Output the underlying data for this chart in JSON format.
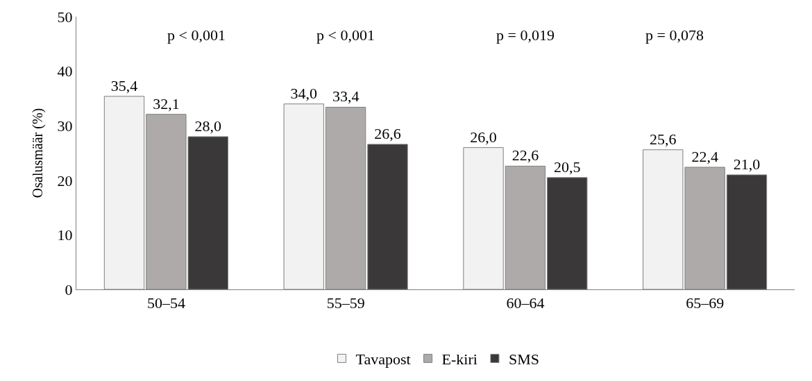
{
  "chart_data": {
    "type": "bar",
    "ylabel": "Osalusmäär (%)",
    "categories": [
      "50–54",
      "55–59",
      "60–64",
      "65–69"
    ],
    "series": [
      {
        "name": "Tavapost",
        "color": "#f2f2f2",
        "values": [
          35.4,
          34.0,
          26.0,
          25.6
        ],
        "value_labels": [
          "35,4",
          "34,0",
          "26,0",
          "25,6"
        ]
      },
      {
        "name": "E-kiri",
        "color": "#aeaaaa",
        "values": [
          32.1,
          33.4,
          22.6,
          22.4
        ],
        "value_labels": [
          "32,1",
          "33,4",
          "22,6",
          "22,4"
        ]
      },
      {
        "name": "SMS",
        "color": "#3a3838",
        "values": [
          28.0,
          26.6,
          20.5,
          21.0
        ],
        "value_labels": [
          "28,0",
          "26,6",
          "20,5",
          "21,0"
        ]
      }
    ],
    "annotations": [
      "p < 0,001",
      "p < 0,001",
      "p = 0,019",
      "p = 0,078"
    ],
    "ylim": [
      0,
      50
    ],
    "yticks": [
      0,
      10,
      20,
      30,
      40,
      50
    ],
    "legend": "bottom"
  }
}
